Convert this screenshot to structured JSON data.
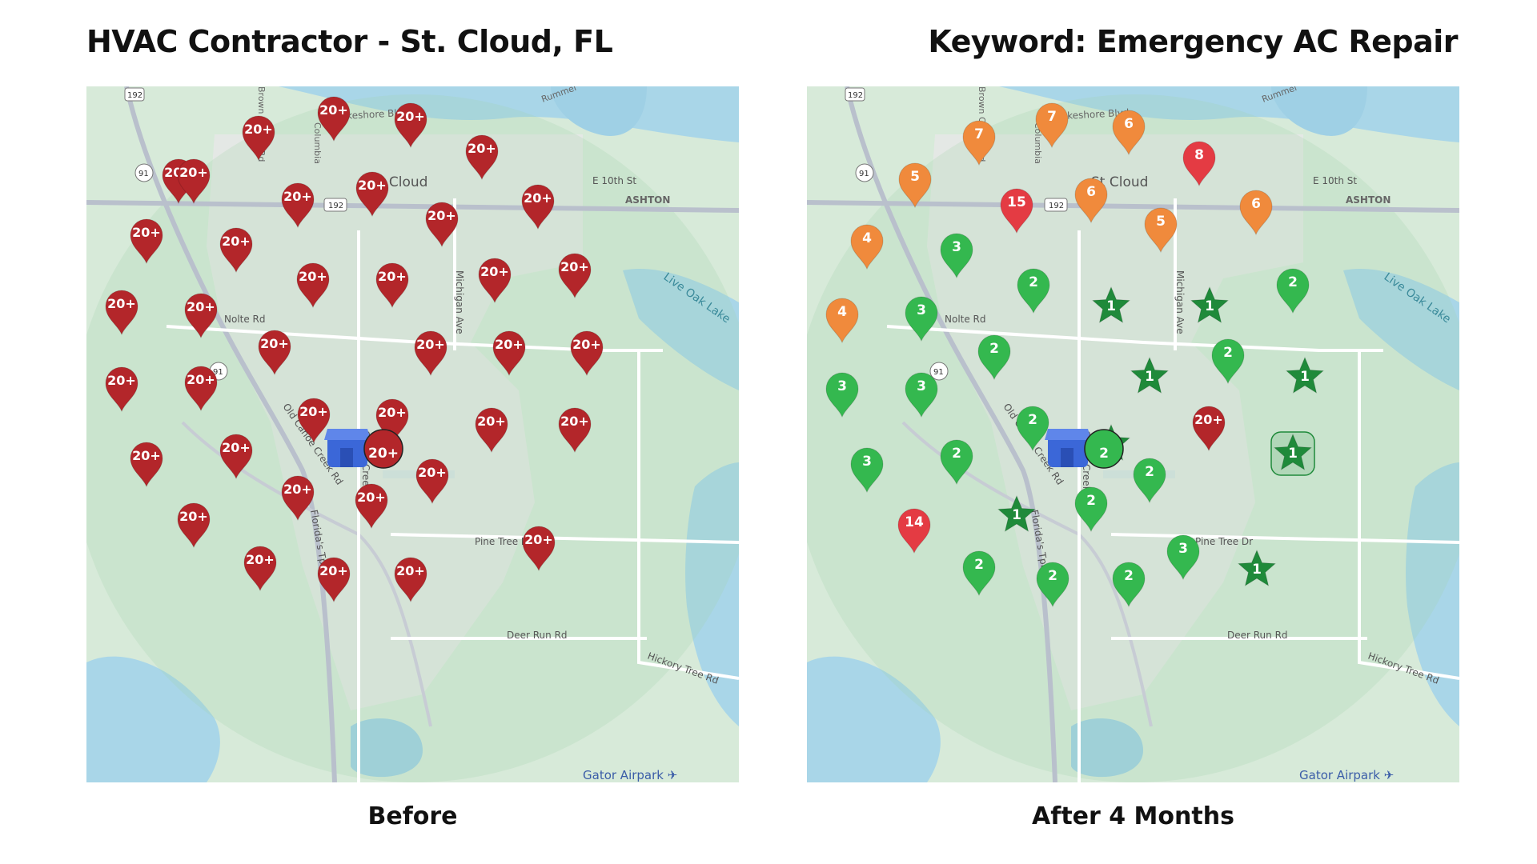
{
  "header": {
    "title_left": "HVAC Contractor - St. Cloud, FL",
    "title_right": "Keyword: Emergency AC Repair"
  },
  "captions": {
    "before": "Before",
    "after": "After 4 Months"
  },
  "map": {
    "city_label": "St Cloud",
    "street_labels": [
      "E Lakeshore Blvd",
      "E 10th St",
      "ASHTON",
      "Nolte Rd",
      "Pine Tree Dr",
      "Deer Run Rd",
      "Hickory Tree Rd",
      "Michigan Ave",
      "Canoe Creek Rd",
      "Old Canoe Creek Rd",
      "Florida's Tpke",
      "Live Oak Lake",
      "Brown Chapel Rd",
      "Columbia",
      "Rummel"
    ],
    "route_shields": [
      "192",
      "91"
    ],
    "airport_label": "Gator Airpark"
  },
  "colors": {
    "red_dark": "#b3262a",
    "red": "#e43b43",
    "orange": "#f08a3c",
    "green": "#34b84f",
    "star_green": "#1f8a3a",
    "store_blue": "#3b67d8"
  },
  "before_grid": {
    "store_rank": "20+",
    "pins": [
      {
        "rank": "20+",
        "color": "red_dark"
      },
      {
        "rank": "20+",
        "color": "red_dark"
      },
      {
        "rank": "20+",
        "color": "red_dark"
      },
      {
        "rank": "20+",
        "color": "red_dark"
      },
      {
        "rank": "20+",
        "color": "red_dark"
      },
      {
        "rank": "20+",
        "color": "red_dark"
      },
      {
        "rank": "20+",
        "color": "red_dark"
      },
      {
        "rank": "20+",
        "color": "red_dark"
      },
      {
        "rank": "20+",
        "color": "red_dark"
      },
      {
        "rank": "20+",
        "color": "red_dark"
      },
      {
        "rank": "20+",
        "color": "red_dark"
      },
      {
        "rank": "20+",
        "color": "red_dark"
      },
      {
        "rank": "20+",
        "color": "red_dark"
      },
      {
        "rank": "20+",
        "color": "red_dark"
      },
      {
        "rank": "20+",
        "color": "red_dark"
      },
      {
        "rank": "20+",
        "color": "red_dark"
      },
      {
        "rank": "20+",
        "color": "red_dark"
      },
      {
        "rank": "20+",
        "color": "red_dark"
      },
      {
        "rank": "20+",
        "color": "red_dark"
      },
      {
        "rank": "20+",
        "color": "red_dark"
      },
      {
        "rank": "20+",
        "color": "red_dark"
      },
      {
        "rank": "20+",
        "color": "red_dark"
      },
      {
        "rank": "20+",
        "color": "red_dark"
      },
      {
        "rank": "20+",
        "color": "red_dark"
      },
      {
        "rank": "20+",
        "color": "red_dark"
      },
      {
        "rank": "20+",
        "color": "red_dark"
      },
      {
        "rank": "20+",
        "color": "red_dark"
      },
      {
        "rank": "20+",
        "color": "red_dark"
      },
      {
        "rank": "20+",
        "color": "red_dark"
      },
      {
        "rank": "20+",
        "color": "red_dark"
      },
      {
        "rank": "20+",
        "color": "red_dark"
      },
      {
        "rank": "20+",
        "color": "red_dark"
      },
      {
        "rank": "20+",
        "color": "red_dark"
      },
      {
        "rank": "20+",
        "color": "red_dark"
      },
      {
        "rank": "20+",
        "color": "red_dark"
      },
      {
        "rank": "20+",
        "color": "red_dark"
      },
      {
        "rank": "20+",
        "color": "red_dark"
      },
      {
        "rank": "20+",
        "color": "red_dark"
      }
    ]
  },
  "after_grid": {
    "store_rank": "2",
    "pins": [
      {
        "rank": "7",
        "color": "orange"
      },
      {
        "rank": "7",
        "color": "orange"
      },
      {
        "rank": "6",
        "color": "orange"
      },
      {
        "rank": "8",
        "color": "red"
      },
      {
        "rank": "5",
        "color": "orange"
      },
      {
        "rank": "15",
        "color": "red"
      },
      {
        "rank": "6",
        "color": "orange"
      },
      {
        "rank": "5",
        "color": "orange"
      },
      {
        "rank": "6",
        "color": "orange"
      },
      {
        "rank": "4",
        "color": "orange"
      },
      {
        "rank": "3",
        "color": "green"
      },
      {
        "rank": "2",
        "color": "green"
      },
      {
        "rank": "1",
        "color": "star_green",
        "shape": "star"
      },
      {
        "rank": "1",
        "color": "star_green",
        "shape": "star"
      },
      {
        "rank": "2",
        "color": "green"
      },
      {
        "rank": "4",
        "color": "orange"
      },
      {
        "rank": "3",
        "color": "green"
      },
      {
        "rank": "2",
        "color": "green"
      },
      {
        "rank": "1",
        "color": "star_green",
        "shape": "star"
      },
      {
        "rank": "2",
        "color": "green"
      },
      {
        "rank": "1",
        "color": "star_green",
        "shape": "star"
      },
      {
        "rank": "3",
        "color": "green"
      },
      {
        "rank": "3",
        "color": "green"
      },
      {
        "rank": "2",
        "color": "green"
      },
      {
        "rank": "1",
        "color": "star_green",
        "shape": "star"
      },
      {
        "rank": "20+",
        "color": "red_dark"
      },
      {
        "rank": "1",
        "color": "star_green",
        "shape": "star",
        "highlight": true
      },
      {
        "rank": "3",
        "color": "green"
      },
      {
        "rank": "2",
        "color": "green"
      },
      {
        "rank": "1",
        "color": "star_green",
        "shape": "star"
      },
      {
        "rank": "2",
        "color": "green"
      },
      {
        "rank": "2",
        "color": "green"
      },
      {
        "rank": "1",
        "color": "star_green",
        "shape": "star"
      },
      {
        "rank": "14",
        "color": "red"
      },
      {
        "rank": "2",
        "color": "green"
      },
      {
        "rank": "2",
        "color": "green"
      },
      {
        "rank": "2",
        "color": "green"
      },
      {
        "rank": "3",
        "color": "green"
      }
    ]
  }
}
